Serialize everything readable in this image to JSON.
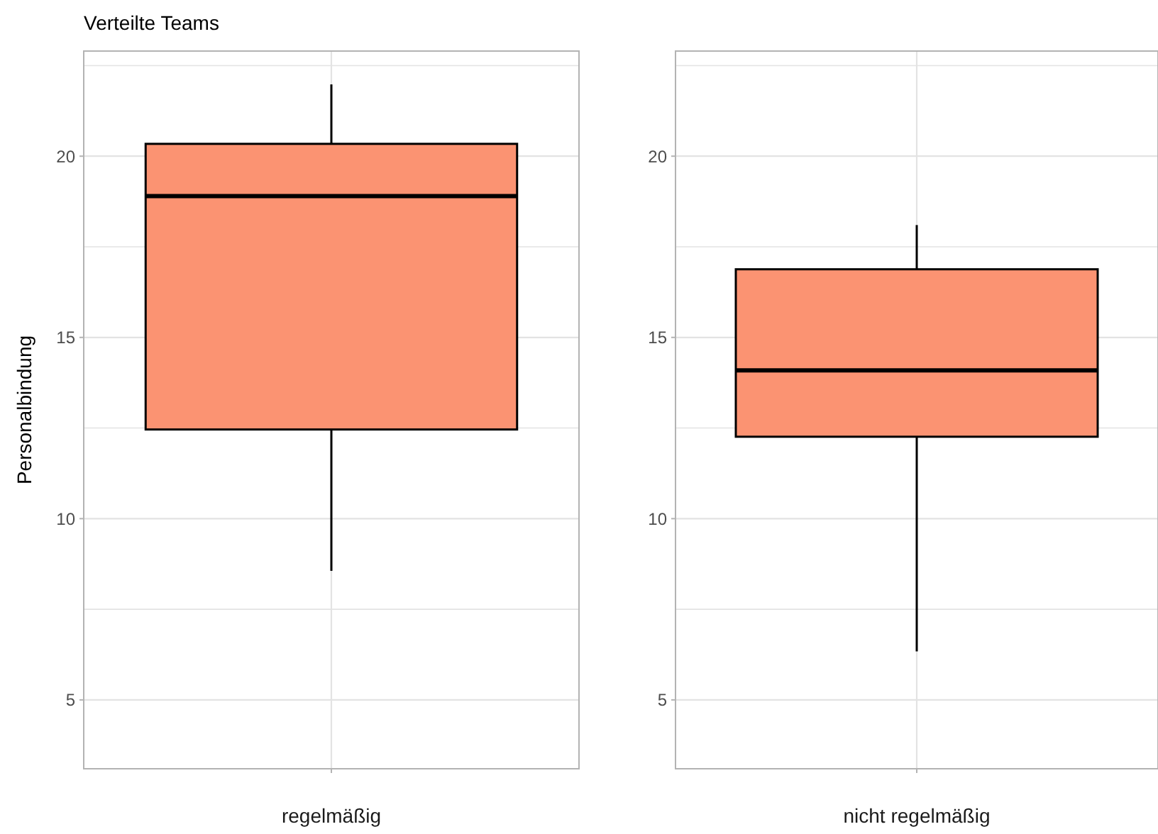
{
  "chart_data": [
    {
      "type": "box",
      "title": "Verteilte Teams",
      "ylabel": "Personalbindung",
      "categories": [
        "regelmäßig"
      ],
      "color": "#fb9372",
      "grid": true,
      "ylim": [
        3.1,
        22.9
      ],
      "yticks": [
        {
          "value": 7.5,
          "label": null
        },
        {
          "value": 12.5,
          "label": null
        },
        {
          "value": 17.5,
          "label": null
        },
        {
          "value": 22.5,
          "label": null
        },
        5,
        10,
        15,
        20
      ],
      "boxes": [
        {
          "low": 8.56,
          "q1": 12.46,
          "median": 18.9,
          "q3": 20.34,
          "high": 21.98
        }
      ]
    },
    {
      "type": "box",
      "categories": [
        "nicht regelmäßig"
      ],
      "color": "#fb9372",
      "grid": true,
      "ylim": [
        3.1,
        22.9
      ],
      "yticks": [
        {
          "value": 7.5,
          "label": null
        },
        {
          "value": 12.5,
          "label": null
        },
        {
          "value": 17.5,
          "label": null
        },
        {
          "value": 22.5,
          "label": null
        },
        5,
        10,
        15,
        20
      ],
      "boxes": [
        {
          "low": 6.34,
          "q1": 12.26,
          "median": 14.09,
          "q3": 16.88,
          "high": 18.1
        }
      ]
    }
  ]
}
